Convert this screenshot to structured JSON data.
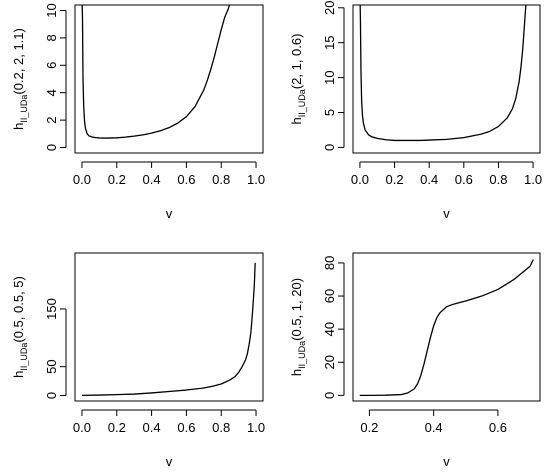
{
  "chart_data": [
    {
      "type": "line",
      "title": "",
      "xlabel": "v",
      "ylabel_main": "h",
      "ylabel_sub": "II_UDa",
      "ylabel_args": "(0.2, 2, 1.1)",
      "xlim": [
        -0.04,
        1.04
      ],
      "ylim": [
        -0.4,
        10.4
      ],
      "xticks": [
        0.0,
        0.2,
        0.4,
        0.6,
        0.8,
        1.0
      ],
      "xtick_labels": [
        "0.0",
        "0.2",
        "0.4",
        "0.6",
        "0.8",
        "1.0"
      ],
      "yticks": [
        0,
        2,
        4,
        6,
        8,
        10
      ],
      "ytick_labels": [
        "0",
        "2",
        "4",
        "6",
        "8",
        "10"
      ],
      "series": [
        {
          "x": [
            0.001,
            0.003,
            0.006,
            0.01,
            0.015,
            0.02,
            0.03,
            0.04,
            0.06,
            0.08,
            0.1,
            0.12,
            0.15,
            0.2,
            0.25,
            0.3,
            0.35,
            0.4,
            0.45,
            0.5,
            0.55,
            0.6,
            0.65,
            0.7,
            0.72,
            0.74,
            0.76,
            0.78,
            0.8,
            0.82,
            0.84,
            0.85
          ],
          "y": [
            10.5,
            9.5,
            5.0,
            3.0,
            1.9,
            1.4,
            1.0,
            0.85,
            0.76,
            0.72,
            0.7,
            0.69,
            0.69,
            0.71,
            0.76,
            0.83,
            0.92,
            1.05,
            1.22,
            1.45,
            1.78,
            2.25,
            3.0,
            4.2,
            4.9,
            5.7,
            6.6,
            7.6,
            8.6,
            9.5,
            10.1,
            10.5
          ]
        }
      ]
    },
    {
      "type": "line",
      "title": "",
      "xlabel": "v",
      "ylabel_main": "h",
      "ylabel_sub": "II_UDa",
      "ylabel_args": "(2, 1, 0.6)",
      "xlim": [
        -0.04,
        1.04
      ],
      "ylim": [
        -0.8,
        20.4
      ],
      "xticks": [
        0.0,
        0.2,
        0.4,
        0.6,
        0.8,
        1.0
      ],
      "xtick_labels": [
        "0.0",
        "0.2",
        "0.4",
        "0.6",
        "0.8",
        "1.0"
      ],
      "yticks": [
        0,
        5,
        10,
        15,
        20
      ],
      "ytick_labels": [
        "0",
        "5",
        "10",
        "15",
        "20"
      ],
      "series": [
        {
          "x": [
            0.001,
            0.003,
            0.006,
            0.01,
            0.015,
            0.02,
            0.03,
            0.05,
            0.07,
            0.1,
            0.15,
            0.2,
            0.25,
            0.3,
            0.35,
            0.4,
            0.5,
            0.6,
            0.7,
            0.75,
            0.8,
            0.85,
            0.88,
            0.9,
            0.92,
            0.93,
            0.94,
            0.95,
            0.96
          ],
          "y": [
            21.0,
            18.0,
            11.0,
            6.5,
            4.5,
            3.5,
            2.5,
            1.8,
            1.5,
            1.3,
            1.1,
            1.0,
            1.0,
            1.0,
            1.0,
            1.05,
            1.15,
            1.4,
            1.9,
            2.3,
            3.0,
            4.2,
            5.5,
            7.0,
            9.5,
            11.5,
            14.0,
            17.5,
            21.0
          ]
        }
      ]
    },
    {
      "type": "line",
      "title": "",
      "xlabel": "v",
      "ylabel_main": "h",
      "ylabel_sub": "II_UDa",
      "ylabel_args": "(0.5, 0.5, 5)",
      "xlim": [
        -0.04,
        1.04
      ],
      "ylim": [
        -9.5,
        247
      ],
      "xticks": [
        0.0,
        0.2,
        0.4,
        0.6,
        0.8,
        1.0
      ],
      "xtick_labels": [
        "0.0",
        "0.2",
        "0.4",
        "0.6",
        "0.8",
        "1.0"
      ],
      "yticks": [
        0,
        50,
        150
      ],
      "ytick_labels": [
        "0",
        "50",
        "150"
      ],
      "series": [
        {
          "x": [
            0.0,
            0.1,
            0.2,
            0.3,
            0.4,
            0.5,
            0.6,
            0.7,
            0.75,
            0.8,
            0.85,
            0.88,
            0.9,
            0.92,
            0.94,
            0.95,
            0.96,
            0.97,
            0.98,
            0.99,
            0.995
          ],
          "y": [
            0.3,
            0.8,
            1.5,
            2.5,
            4.5,
            7.0,
            9.5,
            13.0,
            16.0,
            20.0,
            27.0,
            33.0,
            40.0,
            50.0,
            62.0,
            72.0,
            88.0,
            108.0,
            145.0,
            190.0,
            230.0
          ]
        }
      ]
    },
    {
      "type": "line",
      "title": "",
      "xlabel": "v",
      "ylabel_main": "h",
      "ylabel_sub": "II_UDa",
      "ylabel_args": "(0.5, 1, 20)",
      "xlim": [
        0.149,
        0.731
      ],
      "ylim": [
        -3.4,
        86
      ],
      "xticks": [
        0.2,
        0.4,
        0.6
      ],
      "xtick_labels": [
        "0.2",
        "0.4",
        "0.6"
      ],
      "yticks": [
        0,
        20,
        40,
        60,
        80
      ],
      "ytick_labels": [
        "0",
        "20",
        "40",
        "60",
        "80"
      ],
      "series": [
        {
          "x": [
            0.17,
            0.2,
            0.25,
            0.3,
            0.32,
            0.34,
            0.35,
            0.36,
            0.37,
            0.38,
            0.39,
            0.4,
            0.41,
            0.42,
            0.44,
            0.46,
            0.48,
            0.5,
            0.55,
            0.6,
            0.65,
            0.7,
            0.71
          ],
          "y": [
            0.0,
            0.0,
            0.1,
            0.5,
            1.5,
            4.0,
            7.0,
            12.0,
            19.0,
            27.0,
            35.0,
            42.0,
            47.0,
            50.0,
            53.5,
            55.0,
            56.0,
            57.0,
            60.0,
            64.0,
            70.0,
            78.0,
            82.0
          ]
        }
      ]
    }
  ]
}
